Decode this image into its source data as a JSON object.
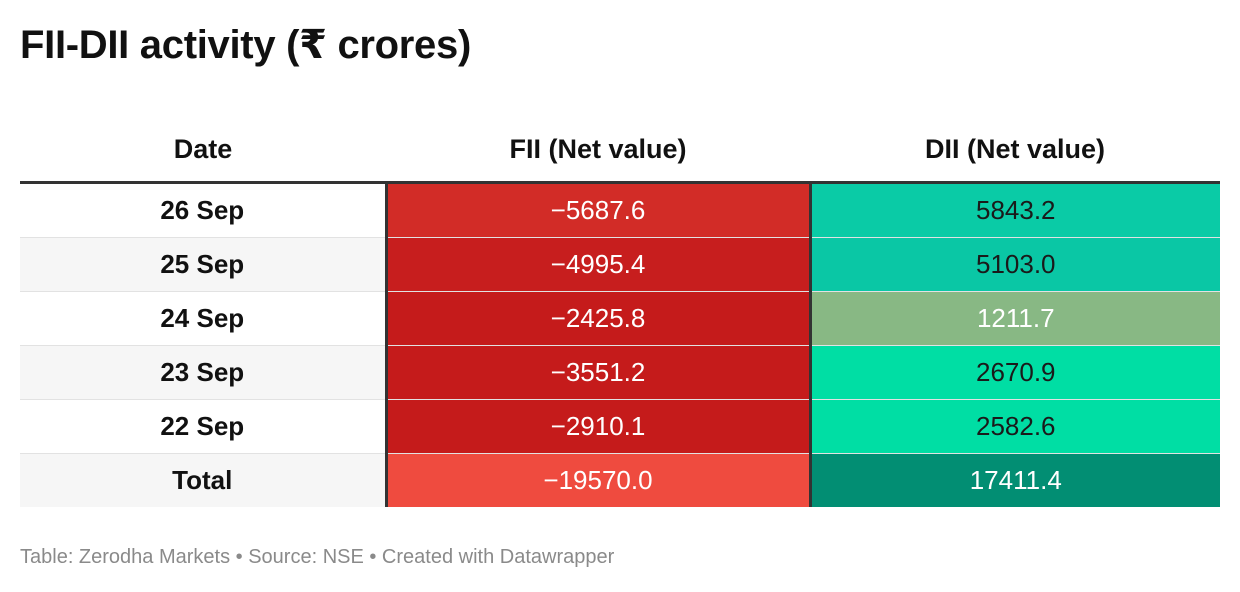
{
  "title": "FII-DII activity (₹ crores)",
  "chart_data": {
    "type": "table",
    "title": "FII-DII activity (₹ crores)",
    "columns": [
      "Date",
      "FII (Net value)",
      "DII (Net value)"
    ],
    "rows": [
      {
        "date": "26 Sep",
        "fii": "−5687.6",
        "dii": "5843.2",
        "fii_color": "#d22c27",
        "dii_color": "#0acba6",
        "fii_text": "#ffffff",
        "dii_text": "#1a1a1a"
      },
      {
        "date": "25 Sep",
        "fii": "−4995.4",
        "dii": "5103.0",
        "fii_color": "#c71e1e",
        "dii_color": "#0ac7a5",
        "fii_text": "#ffffff",
        "dii_text": "#1a1a1a"
      },
      {
        "date": "24 Sep",
        "fii": "−2425.8",
        "dii": "1211.7",
        "fii_color": "#c51b1b",
        "dii_color": "#88b884",
        "fii_text": "#ffffff",
        "dii_text": "#ffffff"
      },
      {
        "date": "23 Sep",
        "fii": "−3551.2",
        "dii": "2670.9",
        "fii_color": "#c51b1b",
        "dii_color": "#00dea4",
        "fii_text": "#ffffff",
        "dii_text": "#1a1a1a"
      },
      {
        "date": "22 Sep",
        "fii": "−2910.1",
        "dii": "2582.6",
        "fii_color": "#c51b1b",
        "dii_color": "#00dea4",
        "fii_text": "#ffffff",
        "dii_text": "#1a1a1a"
      }
    ],
    "total": {
      "date": "Total",
      "fii": "−19570.0",
      "dii": "17411.4",
      "fii_color": "#ef4b3f",
      "dii_color": "#028e73",
      "fii_text": "#ffffff",
      "dii_text": "#ffffff"
    }
  },
  "footer": "Table: Zerodha Markets • Source: NSE • Created with Datawrapper"
}
